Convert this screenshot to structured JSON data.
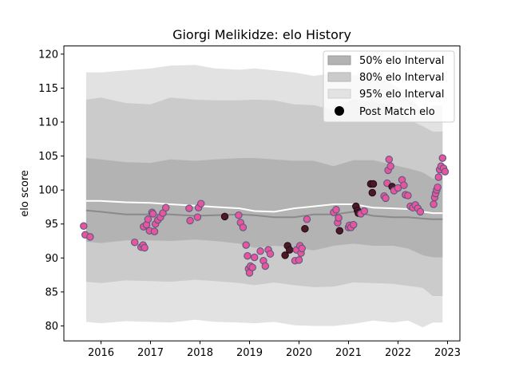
{
  "chart_data": {
    "type": "scatter",
    "title": "Giorgi Melikidze: elo History",
    "xlabel": "",
    "ylabel": "elo score",
    "xlim": [
      2015.25,
      2023.25
    ],
    "ylim": [
      77.8,
      121.2
    ],
    "x_ticks": [
      2016,
      2017,
      2018,
      2019,
      2020,
      2021,
      2022,
      2023
    ],
    "x_tick_labels": [
      "2016",
      "2017",
      "2018",
      "2019",
      "2020",
      "2021",
      "2022",
      "2023"
    ],
    "y_ticks": [
      80,
      85,
      90,
      95,
      100,
      105,
      110,
      115,
      120
    ],
    "y_tick_labels": [
      "80",
      "85",
      "90",
      "95",
      "100",
      "105",
      "110",
      "115",
      "120"
    ],
    "grid": false,
    "legend_position": "top-right",
    "legend": [
      "50% elo Interval",
      "80% elo Interval",
      "95% elo Interval",
      "Post Match elo"
    ],
    "colors": {
      "band95": "#e2e2e2",
      "band80": "#cbcbcb",
      "band50": "#b3b3b3",
      "median_line": "#8a8a8a",
      "mean_line": "#ffffff",
      "point_fill": "#e8559c",
      "point_fill_dark": "#4a1a28",
      "point_edge": "#5a5a80"
    },
    "series": [
      {
        "name": "95% elo Interval",
        "kind": "band",
        "x": [
          2015.7,
          2016.0,
          2016.5,
          2017.0,
          2017.4,
          2017.9,
          2018.3,
          2018.8,
          2019.1,
          2019.5,
          2019.9,
          2020.3,
          2020.7,
          2021.1,
          2021.5,
          2021.9,
          2022.2,
          2022.5,
          2022.7,
          2022.9
        ],
        "lower": [
          80.6,
          80.4,
          80.7,
          80.6,
          80.5,
          80.9,
          80.6,
          80.5,
          80.4,
          80.6,
          80.1,
          80.0,
          80.0,
          80.3,
          80.8,
          80.5,
          80.8,
          79.8,
          80.5,
          80.5
        ],
        "upper": [
          117.3,
          117.3,
          117.6,
          117.9,
          118.3,
          118.4,
          117.9,
          117.7,
          117.9,
          117.6,
          117.3,
          116.8,
          117.2,
          116.9,
          116.9,
          115.6,
          113.9,
          111.6,
          112.5,
          112.4
        ]
      },
      {
        "name": "80% elo Interval",
        "kind": "band",
        "x": [
          2015.7,
          2016.0,
          2016.5,
          2017.0,
          2017.4,
          2017.9,
          2018.3,
          2018.8,
          2019.1,
          2019.5,
          2019.9,
          2020.3,
          2020.7,
          2021.1,
          2021.5,
          2021.9,
          2022.2,
          2022.5,
          2022.7,
          2022.9
        ],
        "lower": [
          86.5,
          86.3,
          86.7,
          86.6,
          86.5,
          86.8,
          86.6,
          86.3,
          86.0,
          86.4,
          86.0,
          85.7,
          85.8,
          86.4,
          86.3,
          86.2,
          85.9,
          85.6,
          84.4,
          84.4
        ],
        "upper": [
          113.3,
          113.6,
          112.8,
          112.6,
          113.6,
          113.3,
          113.2,
          113.2,
          113.3,
          113.2,
          112.6,
          112.5,
          111.8,
          113.4,
          112.9,
          112.4,
          110.4,
          109.4,
          108.6,
          108.6
        ]
      },
      {
        "name": "50% elo Interval",
        "kind": "band",
        "x": [
          2015.7,
          2016.0,
          2016.5,
          2017.0,
          2017.4,
          2017.9,
          2018.3,
          2018.8,
          2019.1,
          2019.5,
          2019.9,
          2020.3,
          2020.7,
          2021.1,
          2021.5,
          2021.9,
          2022.2,
          2022.5,
          2022.7,
          2022.9
        ],
        "lower": [
          92.4,
          92.2,
          92.6,
          92.6,
          92.5,
          92.7,
          92.5,
          92.1,
          91.5,
          91.8,
          91.6,
          91.1,
          91.8,
          92.1,
          91.8,
          91.8,
          91.4,
          90.4,
          90.1,
          90.1
        ],
        "upper": [
          104.7,
          104.5,
          104.1,
          104.0,
          104.5,
          104.3,
          104.5,
          104.7,
          104.7,
          104.5,
          104.3,
          104.3,
          103.5,
          104.4,
          104.4,
          103.7,
          103.2,
          102.6,
          101.7,
          101.7
        ]
      },
      {
        "name": "median",
        "kind": "line",
        "x": [
          2015.7,
          2016.0,
          2016.5,
          2017.0,
          2017.4,
          2017.9,
          2018.3,
          2018.8,
          2019.1,
          2019.5,
          2019.9,
          2020.3,
          2020.7,
          2021.1,
          2021.5,
          2021.9,
          2022.2,
          2022.5,
          2022.7,
          2022.9
        ],
        "y": [
          97.0,
          96.8,
          96.4,
          96.4,
          96.4,
          96.2,
          96.3,
          96.4,
          96.3,
          96.0,
          96.0,
          96.4,
          96.4,
          96.8,
          96.2,
          96.0,
          96.0,
          95.8,
          95.7,
          95.7
        ]
      },
      {
        "name": "mean",
        "kind": "line",
        "x": [
          2015.7,
          2016.0,
          2016.5,
          2017.0,
          2017.4,
          2017.9,
          2018.3,
          2018.8,
          2019.1,
          2019.5,
          2019.9,
          2020.3,
          2020.7,
          2021.1,
          2021.5,
          2021.9,
          2022.2,
          2022.5,
          2022.7,
          2022.9
        ],
        "y": [
          98.4,
          98.4,
          98.2,
          98.1,
          97.9,
          97.7,
          97.5,
          97.3,
          96.9,
          96.8,
          97.3,
          97.6,
          97.9,
          97.9,
          97.4,
          97.3,
          97.2,
          96.8,
          96.6,
          96.6
        ]
      },
      {
        "name": "Post Match elo",
        "kind": "points",
        "x": [
          2015.65,
          2015.68,
          2015.78,
          2016.68,
          2016.81,
          2016.85,
          2016.86,
          2016.88,
          2016.92,
          2016.95,
          2016.98,
          2017.03,
          2017.05,
          2017.08,
          2017.1,
          2017.15,
          2017.2,
          2017.25,
          2017.31,
          2017.78,
          2017.8,
          2017.95,
          2017.97,
          2018.02,
          2018.5,
          2018.78,
          2018.82,
          2018.87,
          2018.93,
          2018.96,
          2018.98,
          2019.0,
          2019.02,
          2019.06,
          2019.1,
          2019.22,
          2019.28,
          2019.32,
          2019.38,
          2019.42,
          2019.72,
          2019.77,
          2019.81,
          2019.92,
          2019.95,
          2020.0,
          2020.02,
          2020.04,
          2020.06,
          2020.12,
          2020.16,
          2020.7,
          2020.75,
          2020.78,
          2020.8,
          2020.82,
          2021.0,
          2021.02,
          2021.05,
          2021.1,
          2021.15,
          2021.18,
          2021.2,
          2021.25,
          2021.32,
          2021.45,
          2021.48,
          2021.5,
          2021.72,
          2021.75,
          2021.78,
          2021.8,
          2021.82,
          2021.85,
          2021.88,
          2021.92,
          2022.0,
          2022.08,
          2022.12,
          2022.15,
          2022.2,
          2022.25,
          2022.3,
          2022.35,
          2022.4,
          2022.45,
          2022.72,
          2022.74,
          2022.76,
          2022.78,
          2022.8,
          2022.82,
          2022.84,
          2022.87,
          2022.9,
          2022.92,
          2022.95
        ],
        "y": [
          94.7,
          93.4,
          93.1,
          92.3,
          91.6,
          91.9,
          94.6,
          91.5,
          94.9,
          95.7,
          94.0,
          96.7,
          96.5,
          93.9,
          95.0,
          95.6,
          96.0,
          96.6,
          97.4,
          97.3,
          95.5,
          96.0,
          97.4,
          98.0,
          96.1,
          96.3,
          95.2,
          94.5,
          91.9,
          90.3,
          88.4,
          87.8,
          88.8,
          88.6,
          90.1,
          91.0,
          89.6,
          88.8,
          91.2,
          90.6,
          90.4,
          91.8,
          91.2,
          89.6,
          91.2,
          89.7,
          91.8,
          90.7,
          91.4,
          94.3,
          95.7,
          96.7,
          97.1,
          95.2,
          95.9,
          94.0,
          94.5,
          94.8,
          94.5,
          94.9,
          97.6,
          97.0,
          96.6,
          96.5,
          96.9,
          100.9,
          99.6,
          100.9,
          99.1,
          98.8,
          101.0,
          102.9,
          104.5,
          103.5,
          100.5,
          99.9,
          100.3,
          101.5,
          100.7,
          99.3,
          99.2,
          97.6,
          97.4,
          97.8,
          97.3,
          96.8,
          97.9,
          98.9,
          99.5,
          100.0,
          100.4,
          101.9,
          103.0,
          103.5,
          104.7,
          103.2,
          102.7
        ],
        "dark": [
          false,
          false,
          false,
          false,
          false,
          false,
          false,
          false,
          false,
          false,
          false,
          false,
          false,
          false,
          false,
          false,
          false,
          false,
          false,
          false,
          false,
          false,
          false,
          false,
          true,
          false,
          false,
          false,
          false,
          false,
          false,
          false,
          false,
          false,
          false,
          false,
          false,
          false,
          false,
          false,
          true,
          true,
          true,
          false,
          false,
          false,
          false,
          false,
          false,
          true,
          false,
          false,
          false,
          false,
          false,
          true,
          false,
          false,
          false,
          false,
          true,
          true,
          true,
          false,
          false,
          true,
          true,
          true,
          false,
          false,
          false,
          false,
          false,
          false,
          true,
          false,
          false,
          false,
          false,
          false,
          false,
          false,
          false,
          false,
          false,
          false,
          false,
          false,
          false,
          false,
          false,
          false,
          false,
          false,
          false,
          false,
          false
        ]
      }
    ]
  }
}
